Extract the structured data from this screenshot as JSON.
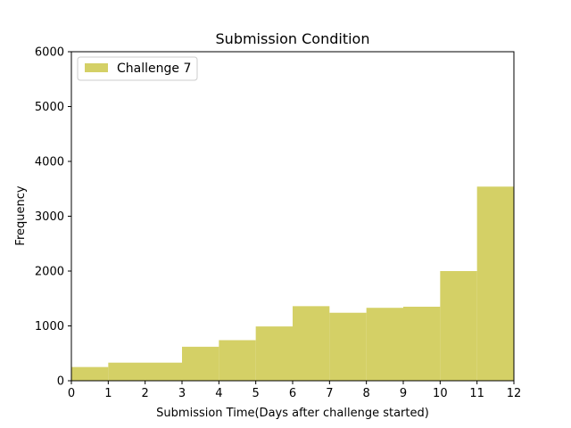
{
  "chart_data": {
    "type": "bar",
    "title": "Submission Condition",
    "xlabel": "Submission Time(Days after challenge started)",
    "ylabel": "Frequency",
    "xlim": [
      0,
      12
    ],
    "ylim": [
      0,
      6000
    ],
    "xticks": [
      0,
      1,
      2,
      3,
      4,
      5,
      6,
      7,
      8,
      9,
      10,
      11,
      12
    ],
    "yticks": [
      0,
      1000,
      2000,
      3000,
      4000,
      5000,
      6000
    ],
    "grid": false,
    "legend_position": "top-left",
    "series": [
      {
        "name": "Challenge 7",
        "color": "#d4d066",
        "bins": [
          {
            "x0": 0,
            "x1": 1,
            "value": 250
          },
          {
            "x0": 1,
            "x1": 3,
            "value": 330
          },
          {
            "x0": 3,
            "x1": 4,
            "value": 620
          },
          {
            "x0": 4,
            "x1": 5,
            "value": 740
          },
          {
            "x0": 5,
            "x1": 6,
            "value": 990
          },
          {
            "x0": 6,
            "x1": 7,
            "value": 1360
          },
          {
            "x0": 7,
            "x1": 8,
            "value": 1240
          },
          {
            "x0": 8,
            "x1": 9,
            "value": 1330
          },
          {
            "x0": 9,
            "x1": 10,
            "value": 1350
          },
          {
            "x0": 10,
            "x1": 11,
            "value": 2000
          },
          {
            "x0": 11,
            "x1": 12,
            "value": 3540
          }
        ]
      }
    ]
  }
}
